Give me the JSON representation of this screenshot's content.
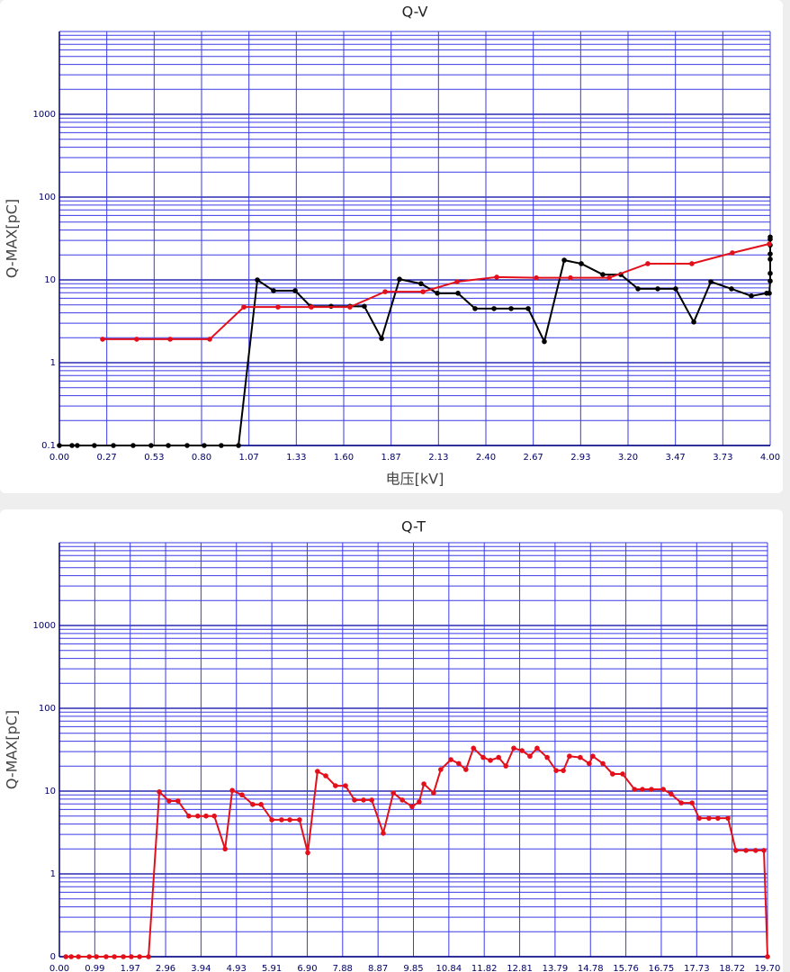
{
  "chart_data": [
    {
      "type": "line",
      "title": "Q-V",
      "y_label": "Q-MAX[pC]",
      "x_label": "电压[kV]",
      "log_y": true,
      "grid": true,
      "xlim": [
        0,
        4
      ],
      "ylim": [
        0.1,
        10000
      ],
      "xticks": [
        {
          "value": 0,
          "label": "0.00"
        },
        {
          "value": 0.2667,
          "label": "0.27"
        },
        {
          "value": 0.5333,
          "label": "0.53"
        },
        {
          "value": 0.8,
          "label": "0.80"
        },
        {
          "value": 1.0667,
          "label": "1.07"
        },
        {
          "value": 1.3333,
          "label": "1.33"
        },
        {
          "value": 1.6,
          "label": "1.60"
        },
        {
          "value": 1.8667,
          "label": "1.87"
        },
        {
          "value": 2.1333,
          "label": "2.13"
        },
        {
          "value": 2.4,
          "label": "2.40"
        },
        {
          "value": 2.6667,
          "label": "2.67"
        },
        {
          "value": 2.9333,
          "label": "2.93"
        },
        {
          "value": 3.2,
          "label": "3.20"
        },
        {
          "value": 3.4667,
          "label": "3.47"
        },
        {
          "value": 3.7333,
          "label": "3.73"
        },
        {
          "value": 4,
          "label": "4.00"
        }
      ],
      "yticks": [
        0.1,
        1,
        10,
        100,
        1000
      ],
      "series": [
        {
          "color": "#000000",
          "x": [
            0,
            0.071,
            0.101,
            0.197,
            0.304,
            0.415,
            0.516,
            0.613,
            0.719,
            0.815,
            0.911,
            1.008,
            1.114,
            1.205,
            1.327,
            1.413,
            1.529,
            1.635,
            1.716,
            1.813,
            1.914,
            2.035,
            2.127,
            2.243,
            2.339,
            2.446,
            2.542,
            2.638,
            2.729,
            2.841,
            2.937,
            3.058,
            3.159,
            3.256,
            3.367,
            3.468,
            3.57,
            3.666,
            3.782,
            3.894,
            3.98,
            3.995,
            4,
            4,
            4,
            4,
            4,
            4,
            4
          ],
          "values": [
            0.1,
            0.1,
            0.1,
            0.1,
            0.1,
            0.1,
            0.1,
            0.1,
            0.1,
            0.1,
            0.1,
            0.1,
            10,
            7.4,
            7.4,
            4.8,
            4.8,
            4.8,
            4.8,
            1.96,
            10.2,
            9,
            6.9,
            6.9,
            4.5,
            4.5,
            4.5,
            4.5,
            1.8,
            17.3,
            15.7,
            11.6,
            11.6,
            7.8,
            7.8,
            7.8,
            3.1,
            9.5,
            7.8,
            6.4,
            6.9,
            6.9,
            9.7,
            12,
            17.8,
            20.6,
            26.3,
            31,
            33
          ]
        },
        {
          "color": "#e3101c",
          "x": [
            0.243,
            0.435,
            0.623,
            0.846,
            1.038,
            1.23,
            1.418,
            1.635,
            1.833,
            2.046,
            2.238,
            2.461,
            2.684,
            2.876,
            3.094,
            3.311,
            3.559,
            3.787,
            3.995
          ],
          "values": [
            1.92,
            1.92,
            1.92,
            1.92,
            4.7,
            4.7,
            4.7,
            4.7,
            7.2,
            7.2,
            9.5,
            10.8,
            10.6,
            10.6,
            10.6,
            15.7,
            15.7,
            21.2,
            27.2
          ]
        }
      ]
    },
    {
      "type": "line",
      "title": "Q-T",
      "y_label": "Q-MAX[pC]",
      "log_y": true,
      "grid": true,
      "xlim": [
        0,
        19.7
      ],
      "ylim": [
        0.1,
        10000
      ],
      "xticks": [
        {
          "value": 0,
          "label": "0.00"
        },
        {
          "value": 0.985,
          "label": "0.99"
        },
        {
          "value": 1.97,
          "label": "1.97"
        },
        {
          "value": 2.955,
          "label": "2.96"
        },
        {
          "value": 3.94,
          "label": "3.94"
        },
        {
          "value": 4.925,
          "label": "4.93"
        },
        {
          "value": 5.91,
          "label": "5.91"
        },
        {
          "value": 6.895,
          "label": "6.90"
        },
        {
          "value": 7.88,
          "label": "7.88"
        },
        {
          "value": 8.865,
          "label": "8.87"
        },
        {
          "value": 9.85,
          "label": "9.85"
        },
        {
          "value": 10.835,
          "label": "10.84"
        },
        {
          "value": 11.82,
          "label": "11.82"
        },
        {
          "value": 12.805,
          "label": "12.81"
        },
        {
          "value": 13.79,
          "label": "13.79"
        },
        {
          "value": 14.775,
          "label": "14.78"
        },
        {
          "value": 15.76,
          "label": "15.76"
        },
        {
          "value": 16.745,
          "label": "16.75"
        },
        {
          "value": 17.73,
          "label": "17.73"
        },
        {
          "value": 18.715,
          "label": "18.72"
        },
        {
          "value": 19.7,
          "label": "19.70"
        }
      ],
      "yticks": [
        {
          "value": 0.1,
          "label": "0"
        },
        1,
        10,
        100,
        1000
      ],
      "series": [
        {
          "color": "#e3101c",
          "x": [
            0.18,
            0.33,
            0.53,
            0.83,
            1.03,
            1.3,
            1.53,
            1.78,
            2,
            2.23,
            2.48,
            2.78,
            3.05,
            3.3,
            3.6,
            3.85,
            4.08,
            4.31,
            4.61,
            4.81,
            5.08,
            5.38,
            5.61,
            5.91,
            6.18,
            6.41,
            6.68,
            6.91,
            7.18,
            7.41,
            7.68,
            7.96,
            8.21,
            8.46,
            8.69,
            9.01,
            9.29,
            9.54,
            9.81,
            10.01,
            10.14,
            10.41,
            10.61,
            10.89,
            11.11,
            11.31,
            11.52,
            11.79,
            11.99,
            12.22,
            12.42,
            12.64,
            12.87,
            13.09,
            13.29,
            13.57,
            13.82,
            14.02,
            14.19,
            14.49,
            14.74,
            14.84,
            15.12,
            15.39,
            15.67,
            16,
            16.22,
            16.47,
            16.8,
            17.02,
            17.3,
            17.6,
            17.8,
            18.07,
            18.32,
            18.6,
            18.82,
            19.1,
            19.37,
            19.6,
            19.7
          ],
          "values": [
            0.1,
            0.1,
            0.1,
            0.1,
            0.1,
            0.1,
            0.1,
            0.1,
            0.1,
            0.1,
            0.1,
            9.8,
            7.6,
            7.6,
            5,
            5,
            5,
            5,
            2,
            10.2,
            9,
            6.9,
            6.9,
            4.5,
            4.5,
            4.5,
            4.5,
            1.8,
            17.3,
            15.3,
            11.6,
            11.6,
            7.8,
            7.8,
            7.8,
            3.1,
            9.5,
            7.8,
            6.5,
            7.4,
            12.2,
            9.5,
            18.2,
            24,
            21.5,
            18.2,
            33,
            25.5,
            23.5,
            25.5,
            20.1,
            33,
            30.8,
            26.4,
            33,
            25.5,
            17.7,
            17.7,
            26.4,
            25.5,
            21.5,
            26.4,
            21.5,
            16.1,
            16.1,
            10.5,
            10.5,
            10.5,
            10.5,
            9.2,
            7.2,
            7.2,
            4.7,
            4.7,
            4.7,
            4.7,
            1.92,
            1.92,
            1.92,
            1.92,
            0.1
          ]
        }
      ]
    }
  ]
}
